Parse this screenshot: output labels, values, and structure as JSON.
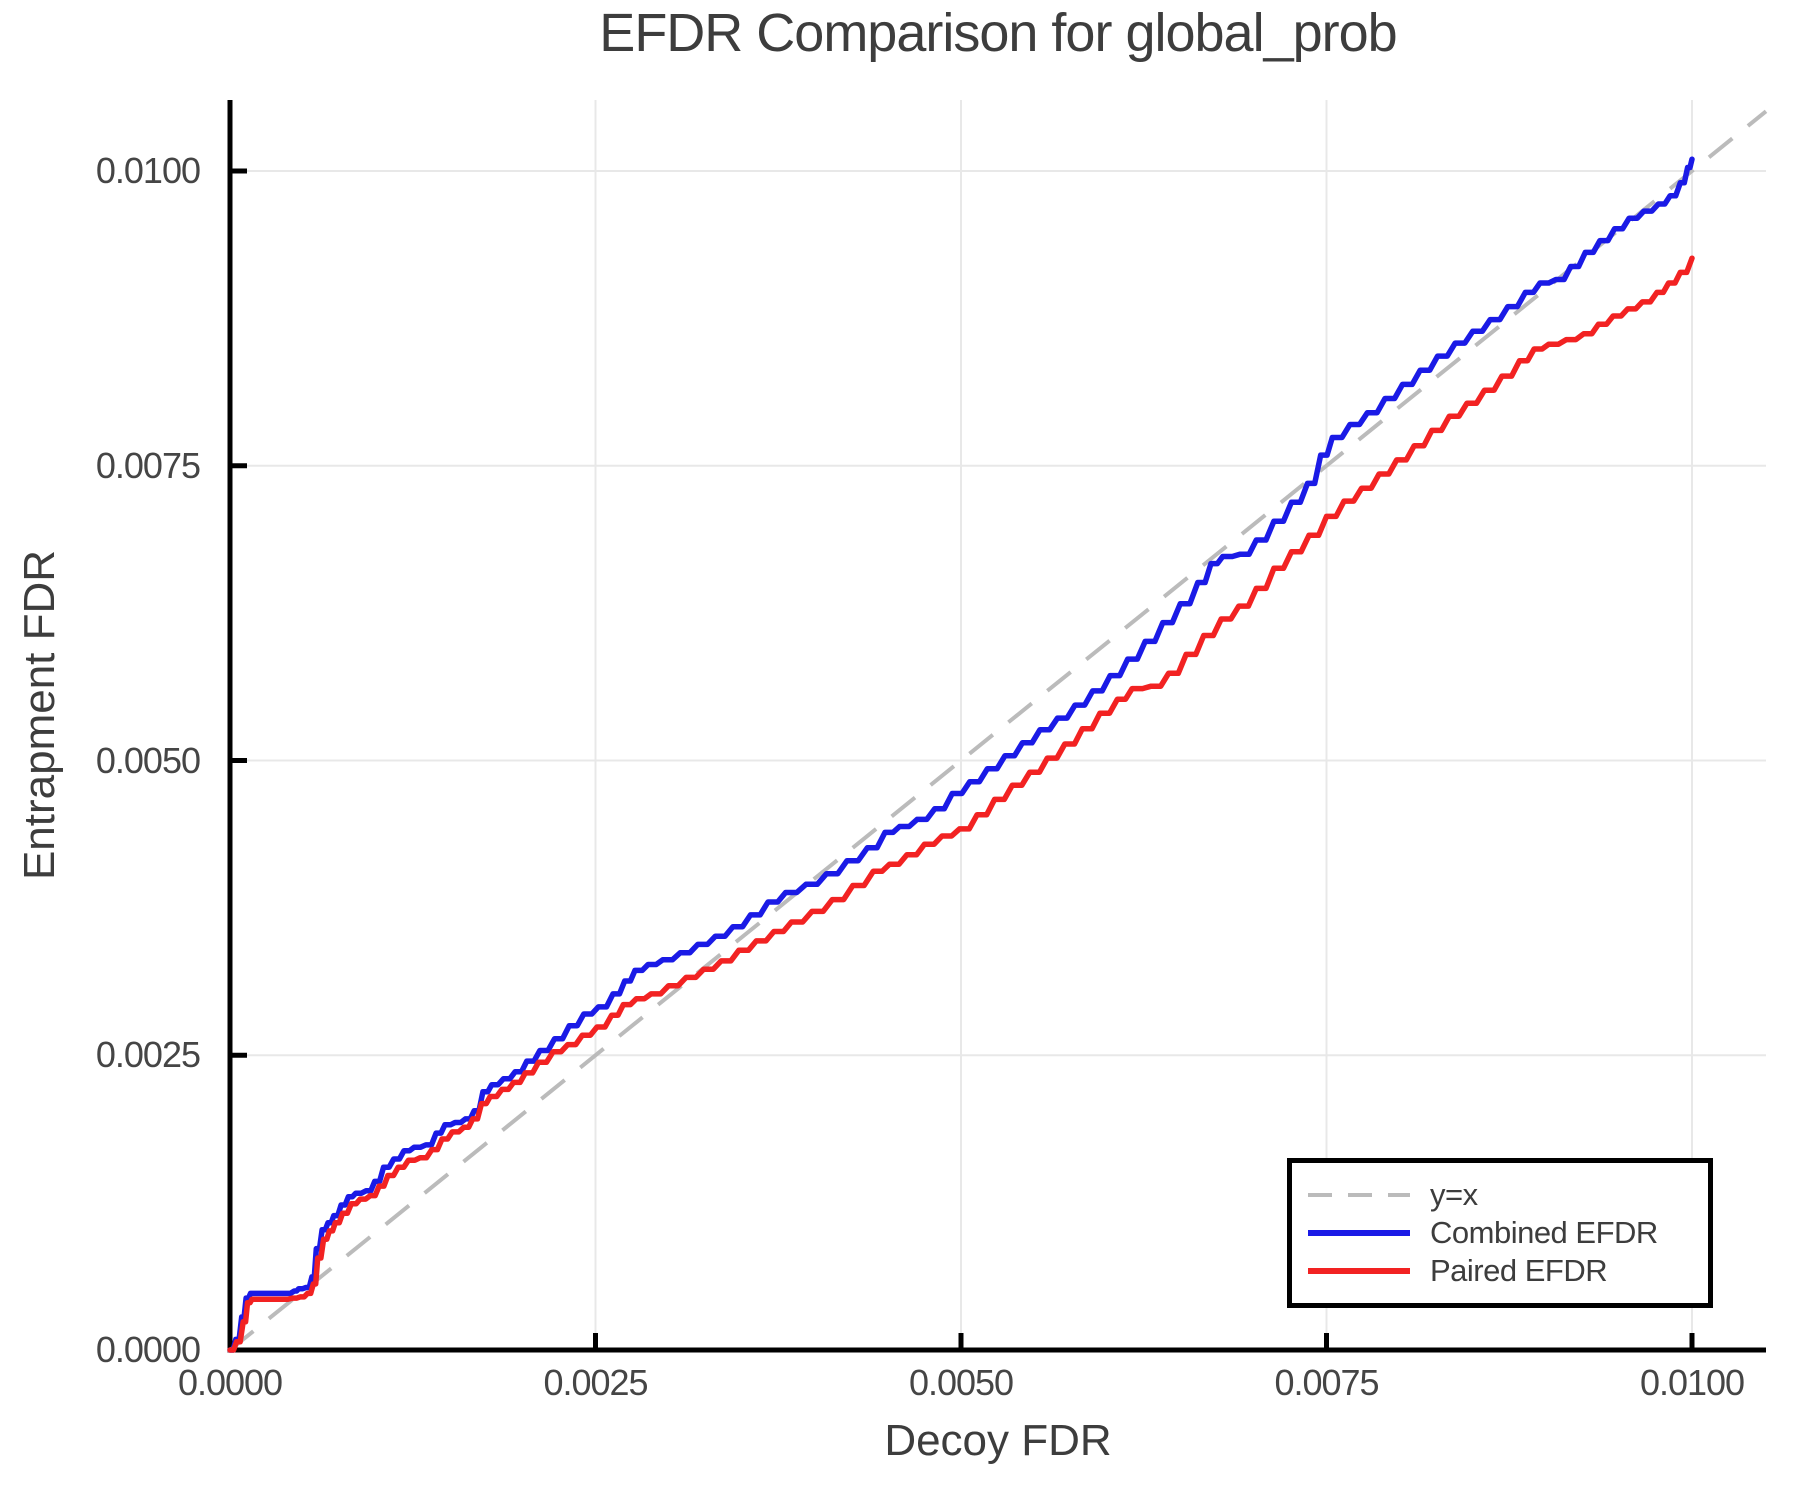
{
  "title": "EFDR Comparison for global_prob",
  "axes": {
    "xlabel": "Decoy FDR",
    "ylabel": "Entrapment FDR"
  },
  "legend": {
    "items": [
      {
        "label": "y=x",
        "color": "#bbbbbb",
        "dash": "24 16",
        "width": 4
      },
      {
        "label": "Combined EFDR",
        "color": "#1a1ae6",
        "dash": "",
        "width": 6
      },
      {
        "label": "Paired EFDR",
        "color": "#f22222",
        "dash": "",
        "width": 6
      }
    ]
  },
  "colors": {
    "combined": "#1a1ae6",
    "paired": "#f22222",
    "diagonal": "#bbbbbb",
    "grid": "#e8e8e8",
    "spine": "#000000",
    "text": "#3d3d3d"
  },
  "chart_data": {
    "type": "line",
    "title": "EFDR Comparison for global_prob",
    "xlabel": "Decoy FDR",
    "ylabel": "Entrapment FDR",
    "xlim": [
      0,
      0.0105
    ],
    "ylim": [
      0,
      0.0106
    ],
    "grid": true,
    "legend_position": "bottom-right",
    "value_unit": 0.0001,
    "x_ticks": [
      {
        "label": "0.0000",
        "value": 0
      },
      {
        "label": "0.0025",
        "value": 25
      },
      {
        "label": "0.0050",
        "value": 50
      },
      {
        "label": "0.0075",
        "value": 75
      },
      {
        "label": "0.0100",
        "value": 100
      }
    ],
    "y_ticks": [
      {
        "label": "0.0000",
        "value": 0
      },
      {
        "label": "0.0025",
        "value": 25
      },
      {
        "label": "0.0050",
        "value": 50
      },
      {
        "label": "0.0075",
        "value": 75
      },
      {
        "label": "0.0100",
        "value": 100
      }
    ],
    "diagonal": {
      "label": "y=x",
      "from": [
        0,
        0
      ],
      "slope": 1
    },
    "series": [
      {
        "name": "Combined EFDR",
        "color": "#1a1ae6",
        "points": [
          [
            0,
            0
          ],
          [
            0.4,
            0.9
          ],
          [
            0.8,
            2.8
          ],
          [
            1.1,
            4.4
          ],
          [
            1.4,
            4.8
          ],
          [
            2.2,
            4.8
          ],
          [
            3,
            4.8
          ],
          [
            3.8,
            4.8
          ],
          [
            4.4,
            5
          ],
          [
            4.7,
            5.2
          ],
          [
            5.2,
            5.3
          ],
          [
            5.6,
            6.2
          ],
          [
            5.9,
            8.6
          ],
          [
            6.3,
            10.2
          ],
          [
            6.7,
            10.8
          ],
          [
            7.1,
            11.4
          ],
          [
            7.6,
            12.3
          ],
          [
            8.1,
            13
          ],
          [
            8.6,
            13.3
          ],
          [
            9.3,
            13.5
          ],
          [
            9.9,
            14.3
          ],
          [
            10.5,
            15.5
          ],
          [
            11.2,
            16.2
          ],
          [
            11.9,
            16.9
          ],
          [
            12.6,
            17.2
          ],
          [
            13.4,
            17.4
          ],
          [
            14.1,
            18.4
          ],
          [
            14.7,
            19.1
          ],
          [
            15.4,
            19.3
          ],
          [
            16.1,
            19.6
          ],
          [
            16.7,
            20.3
          ],
          [
            17.3,
            21.9
          ],
          [
            17.9,
            22.5
          ],
          [
            18.7,
            23
          ],
          [
            19.5,
            23.6
          ],
          [
            20.3,
            24.5
          ],
          [
            21.2,
            25.4
          ],
          [
            22.2,
            26.4
          ],
          [
            23.2,
            27.5
          ],
          [
            24.2,
            28.5
          ],
          [
            25.2,
            29.1
          ],
          [
            26.2,
            30.2
          ],
          [
            27,
            31.3
          ],
          [
            27.7,
            32.2
          ],
          [
            28.6,
            32.7
          ],
          [
            29.6,
            33.1
          ],
          [
            30.8,
            33.7
          ],
          [
            32,
            34.4
          ],
          [
            33.2,
            35.1
          ],
          [
            34.4,
            35.9
          ],
          [
            35.6,
            36.9
          ],
          [
            36.8,
            38
          ],
          [
            38,
            38.8
          ],
          [
            39.4,
            39.5
          ],
          [
            40.8,
            40.4
          ],
          [
            42.2,
            41.5
          ],
          [
            43.6,
            42.6
          ],
          [
            44.8,
            43.9
          ],
          [
            45.8,
            44.4
          ],
          [
            47,
            45
          ],
          [
            48.2,
            45.9
          ],
          [
            49.4,
            47.2
          ],
          [
            50.6,
            48.2
          ],
          [
            51.8,
            49.3
          ],
          [
            53,
            50.4
          ],
          [
            54.2,
            51.5
          ],
          [
            55.4,
            52.6
          ],
          [
            56.6,
            53.6
          ],
          [
            57.8,
            54.7
          ],
          [
            59,
            55.9
          ],
          [
            60.2,
            57.2
          ],
          [
            61.4,
            58.6
          ],
          [
            62.6,
            60.1
          ],
          [
            63.8,
            61.7
          ],
          [
            65,
            63.3
          ],
          [
            66.2,
            65.1
          ],
          [
            67.1,
            66.7
          ],
          [
            67.9,
            67.3
          ],
          [
            69.1,
            67.5
          ],
          [
            70.2,
            68.7
          ],
          [
            71.4,
            70.3
          ],
          [
            72.6,
            71.9
          ],
          [
            73.7,
            73.5
          ],
          [
            74.6,
            75.9
          ],
          [
            75.4,
            77.4
          ],
          [
            76.6,
            78.5
          ],
          [
            77.8,
            79.5
          ],
          [
            79,
            80.7
          ],
          [
            80.2,
            81.9
          ],
          [
            81.4,
            83.1
          ],
          [
            82.6,
            84.3
          ],
          [
            83.8,
            85.4
          ],
          [
            85,
            86.4
          ],
          [
            86.2,
            87.4
          ],
          [
            87.4,
            88.5
          ],
          [
            88.6,
            89.7
          ],
          [
            89.6,
            90.5
          ],
          [
            90.7,
            90.8
          ],
          [
            91.7,
            91.9
          ],
          [
            92.7,
            93.1
          ],
          [
            93.7,
            94.1
          ],
          [
            94.7,
            95.1
          ],
          [
            95.7,
            96
          ],
          [
            96.7,
            96.6
          ],
          [
            97.7,
            97.2
          ],
          [
            98.5,
            97.9
          ],
          [
            99.2,
            99
          ],
          [
            99.7,
            100.3
          ],
          [
            100,
            101
          ]
        ]
      },
      {
        "name": "Paired EFDR",
        "color": "#f22222",
        "points": [
          [
            0,
            0
          ],
          [
            0.45,
            0.7
          ],
          [
            0.9,
            2.4
          ],
          [
            1.2,
            4
          ],
          [
            1.5,
            4.3
          ],
          [
            2.5,
            4.3
          ],
          [
            3.5,
            4.3
          ],
          [
            4.3,
            4.4
          ],
          [
            4.8,
            4.5
          ],
          [
            5.3,
            4.8
          ],
          [
            5.7,
            5.6
          ],
          [
            6,
            7.8
          ],
          [
            6.4,
            9.4
          ],
          [
            6.8,
            10.1
          ],
          [
            7.2,
            10.8
          ],
          [
            7.7,
            11.6
          ],
          [
            8.3,
            12.4
          ],
          [
            8.9,
            12.8
          ],
          [
            9.6,
            13.1
          ],
          [
            10.2,
            13.9
          ],
          [
            10.8,
            14.8
          ],
          [
            11.5,
            15.5
          ],
          [
            12.2,
            16.1
          ],
          [
            13,
            16.3
          ],
          [
            13.8,
            17
          ],
          [
            14.5,
            17.9
          ],
          [
            15.2,
            18.5
          ],
          [
            16,
            18.9
          ],
          [
            16.6,
            19.6
          ],
          [
            17.2,
            20.9
          ],
          [
            17.8,
            21.5
          ],
          [
            18.6,
            22.1
          ],
          [
            19.4,
            22.7
          ],
          [
            20.2,
            23.5
          ],
          [
            21.1,
            24.4
          ],
          [
            22.1,
            25.3
          ],
          [
            23.1,
            25.9
          ],
          [
            24.1,
            26.7
          ],
          [
            25.1,
            27.4
          ],
          [
            26.1,
            28.4
          ],
          [
            26.9,
            29.3
          ],
          [
            27.8,
            29.8
          ],
          [
            28.8,
            30.2
          ],
          [
            30,
            30.9
          ],
          [
            31.2,
            31.6
          ],
          [
            32.4,
            32.3
          ],
          [
            33.6,
            33
          ],
          [
            34.8,
            33.9
          ],
          [
            36,
            34.7
          ],
          [
            37.2,
            35.5
          ],
          [
            38.4,
            36.3
          ],
          [
            39.8,
            37.2
          ],
          [
            41.2,
            38.2
          ],
          [
            42.6,
            39.4
          ],
          [
            44,
            40.6
          ],
          [
            45.1,
            41.2
          ],
          [
            46.3,
            42
          ],
          [
            47.5,
            42.9
          ],
          [
            48.7,
            43.6
          ],
          [
            49.9,
            44.2
          ],
          [
            51.1,
            45.4
          ],
          [
            52.3,
            46.7
          ],
          [
            53.5,
            47.9
          ],
          [
            54.7,
            49
          ],
          [
            55.9,
            50.2
          ],
          [
            57.1,
            51.4
          ],
          [
            58.3,
            52.7
          ],
          [
            59.5,
            54
          ],
          [
            60.7,
            55.2
          ],
          [
            61.7,
            56.1
          ],
          [
            63,
            56.3
          ],
          [
            64.2,
            57.4
          ],
          [
            65.4,
            59
          ],
          [
            66.6,
            60.6
          ],
          [
            67.8,
            62
          ],
          [
            69,
            63.1
          ],
          [
            70.2,
            64.6
          ],
          [
            71.4,
            66.3
          ],
          [
            72.6,
            67.7
          ],
          [
            73.8,
            69.1
          ],
          [
            75,
            70.7
          ],
          [
            76.2,
            72
          ],
          [
            77.4,
            73.1
          ],
          [
            78.6,
            74.3
          ],
          [
            79.8,
            75.5
          ],
          [
            81,
            76.7
          ],
          [
            82.2,
            78
          ],
          [
            83.4,
            79.2
          ],
          [
            84.6,
            80.3
          ],
          [
            85.8,
            81.4
          ],
          [
            87,
            82.6
          ],
          [
            88.2,
            83.9
          ],
          [
            89.2,
            84.9
          ],
          [
            90.2,
            85.3
          ],
          [
            91.4,
            85.7
          ],
          [
            92.6,
            86.2
          ],
          [
            93.6,
            87
          ],
          [
            94.6,
            87.7
          ],
          [
            95.6,
            88.3
          ],
          [
            96.6,
            88.9
          ],
          [
            97.6,
            89.7
          ],
          [
            98.4,
            90.5
          ],
          [
            99.2,
            91.4
          ],
          [
            100,
            92.6
          ]
        ]
      }
    ]
  }
}
